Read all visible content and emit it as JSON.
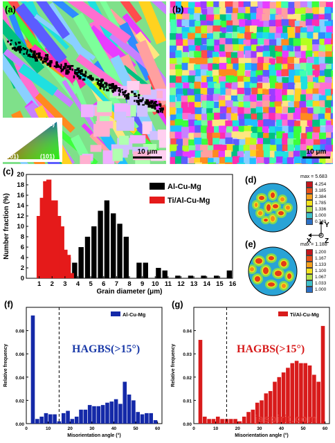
{
  "panels": {
    "a": {
      "letter": "(a)",
      "scale": "10 μm",
      "ipf": {
        "t111": "(111)",
        "t001": "(001)",
        "t101": "(101)"
      }
    },
    "b": {
      "letter": "(b)",
      "scale": "10 μm"
    },
    "c": {
      "letter": "(c)"
    },
    "d": {
      "letter": "(d)",
      "max": "max = 5.683",
      "legend": [
        "4.254",
        "3.185",
        "2.384",
        "1.785",
        "1.336",
        "1.000",
        "0.749"
      ]
    },
    "e": {
      "letter": "(e)",
      "max": "max = 1.188",
      "legend": [
        "1.200",
        "1.167",
        "1.133",
        "1.100",
        "1.067",
        "1.033",
        "1.000"
      ]
    },
    "axes": {
      "y": "Y",
      "x": "X",
      "z": "Z"
    },
    "f": {
      "letter": "(f)",
      "annotation": "HAGBS(>15°)"
    },
    "g": {
      "letter": "(g)",
      "annotation": "HAGBS(>15°)"
    }
  },
  "colors": {
    "black": "#000000",
    "red": "#e51a1a",
    "blue": "#1429a8",
    "red_bar": "#d81b1b",
    "hagbs_blue": "#1a3aa8",
    "hagbs_red": "#d71a1a"
  },
  "watermark": "jaspirit.com",
  "chart_data": [
    {
      "type": "bar",
      "id": "c",
      "xlabel": "Grain diameter (μm)",
      "ylabel": "Number fraction (%)",
      "xlim": [
        0,
        16
      ],
      "ylim": [
        0,
        20
      ],
      "xticks": [
        1,
        2,
        3,
        4,
        5,
        6,
        7,
        8,
        9,
        10,
        11,
        12,
        13,
        14,
        15,
        16
      ],
      "yticks": [
        0,
        2,
        4,
        6,
        8,
        10,
        12,
        14,
        16,
        18,
        20
      ],
      "legend_position": "right",
      "series": [
        {
          "name": "Al-Cu-Mg",
          "color": "#000000",
          "x": [
            3.25,
            3.75,
            4.25,
            4.75,
            5.25,
            5.75,
            6.25,
            6.75,
            7.25,
            7.75,
            8.75,
            9.25,
            10.25,
            10.75,
            11.75,
            12.75,
            13.75,
            14.75,
            15.75
          ],
          "values": [
            4.0,
            3.0,
            6.0,
            8.0,
            10.0,
            13.0,
            15.0,
            12.5,
            10.5,
            8.0,
            3.0,
            3.0,
            2.0,
            1.5,
            0.5,
            0.5,
            0.5,
            0.5,
            1.5
          ]
        },
        {
          "name": "Ti/Al-Cu-Mg",
          "color": "#e51a1a",
          "x": [
            1.0,
            1.25,
            1.5,
            1.75,
            2.0,
            2.25,
            2.5,
            2.75,
            3.0,
            3.25,
            3.5
          ],
          "values": [
            12.0,
            15.5,
            18.7,
            19.0,
            15.0,
            15.0,
            12.0,
            10.0,
            5.5,
            4.5,
            1.0
          ]
        }
      ]
    },
    {
      "type": "bar",
      "id": "f",
      "xlabel": "Misorientation angle (°)",
      "ylabel": "Relative frequency",
      "xlim": [
        0,
        62
      ],
      "ylim": [
        0,
        0.1
      ],
      "xticks": [
        0,
        10,
        20,
        30,
        40,
        50,
        60
      ],
      "yticks": [
        0.0,
        0.02,
        0.04,
        0.06,
        0.08
      ],
      "vline": 15,
      "legend_position": "top-right",
      "series": [
        {
          "name": "Al-Cu-Mg",
          "color": "#1429a8",
          "x": [
            3,
            5,
            7,
            9,
            11,
            13,
            15,
            17,
            19,
            21,
            23,
            25,
            27,
            29,
            31,
            33,
            35,
            37,
            39,
            41,
            43,
            45,
            47,
            49,
            51,
            53,
            55,
            57,
            59
          ],
          "values": [
            0.093,
            0.004,
            0.006,
            0.009,
            0.008,
            0.008,
            0.002,
            0.009,
            0.011,
            0.004,
            0.006,
            0.012,
            0.012,
            0.016,
            0.015,
            0.015,
            0.016,
            0.018,
            0.019,
            0.021,
            0.017,
            0.036,
            0.025,
            0.02,
            0.01,
            0.008,
            0.009,
            0.009,
            0.003
          ]
        }
      ]
    },
    {
      "type": "bar",
      "id": "g",
      "xlabel": "Misorientation angle (°)",
      "ylabel": "Relative frequency",
      "xlim": [
        0,
        62
      ],
      "ylim": [
        0,
        0.05
      ],
      "xticks": [
        0,
        10,
        20,
        30,
        40,
        50,
        60
      ],
      "yticks": [
        0.0,
        0.01,
        0.02,
        0.03,
        0.04
      ],
      "vline": 15,
      "legend_position": "top-right",
      "series": [
        {
          "name": "Ti/Al-Cu-Mg",
          "color": "#d81b1b",
          "x": [
            3,
            5,
            7,
            9,
            11,
            13,
            15,
            17,
            19,
            21,
            23,
            25,
            27,
            29,
            31,
            33,
            35,
            37,
            39,
            41,
            43,
            45,
            47,
            49,
            51,
            53,
            55,
            57,
            59
          ],
          "values": [
            0.036,
            0.003,
            0.002,
            0.002,
            0.003,
            0.002,
            0.002,
            0.002,
            0.002,
            0.001,
            0.003,
            0.005,
            0.006,
            0.009,
            0.01,
            0.013,
            0.014,
            0.018,
            0.02,
            0.022,
            0.024,
            0.026,
            0.027,
            0.026,
            0.026,
            0.025,
            0.021,
            0.018,
            0.042
          ]
        }
      ]
    }
  ]
}
